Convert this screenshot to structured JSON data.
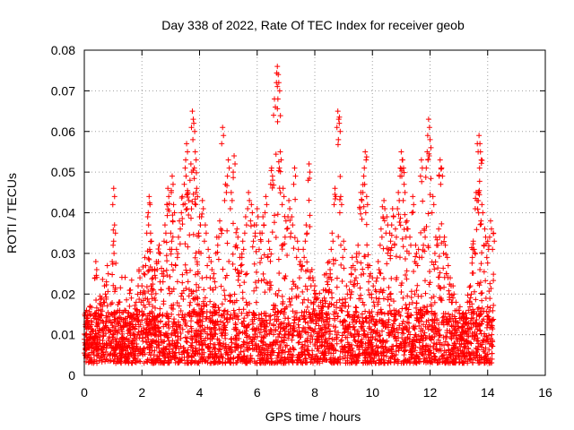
{
  "chart_data": {
    "type": "scatter",
    "title": "Day 338 of 2022, Rate Of TEC Index for receiver geob",
    "xlabel": "GPS time / hours",
    "ylabel": "ROTI / TECUs",
    "xlim": [
      0,
      16
    ],
    "ylim": [
      0,
      0.08
    ],
    "x_ticks": [
      0,
      2,
      4,
      6,
      8,
      10,
      12,
      14,
      16
    ],
    "y_ticks": [
      0,
      0.01,
      0.02,
      0.03,
      0.04,
      0.05,
      0.06,
      0.07,
      0.08
    ],
    "x_tick_labels": [
      "0",
      "2",
      "4",
      "6",
      "8",
      "10",
      "12",
      "14",
      "16"
    ],
    "y_tick_labels": [
      "0",
      "0.01",
      "0.02",
      "0.03",
      "0.04",
      "0.05",
      "0.06",
      "0.07",
      "0.08"
    ],
    "grid": true,
    "marker": "+",
    "series": [
      {
        "name": "ROTI",
        "color": "#ff0000",
        "x": [
          0.05,
          0.1,
          0.15,
          0.2,
          0.3,
          0.4,
          0.5,
          0.6,
          0.7,
          0.8,
          0.9,
          1.0,
          1.02,
          1.05,
          1.1,
          1.2,
          1.3,
          1.4,
          1.5,
          1.6,
          1.7,
          1.8,
          1.9,
          2.0,
          2.1,
          2.2,
          2.25,
          2.3,
          2.35,
          2.4,
          2.5,
          2.6,
          2.7,
          2.8,
          2.9,
          3.0,
          3.05,
          3.1,
          3.2,
          3.3,
          3.4,
          3.5,
          3.55,
          3.6,
          3.7,
          3.75,
          3.8,
          3.85,
          3.9,
          4.0,
          4.1,
          4.2,
          4.3,
          4.4,
          4.5,
          4.6,
          4.7,
          4.8,
          4.9,
          5.0,
          5.1,
          5.2,
          5.3,
          5.4,
          5.5,
          5.6,
          5.7,
          5.8,
          5.9,
          6.0,
          6.1,
          6.2,
          6.3,
          6.4,
          6.5,
          6.6,
          6.7,
          6.75,
          6.8,
          6.9,
          7.0,
          7.1,
          7.2,
          7.3,
          7.4,
          7.5,
          7.6,
          7.7,
          7.8,
          7.9,
          8.0,
          8.1,
          8.2,
          8.3,
          8.4,
          8.5,
          8.6,
          8.7,
          8.8,
          8.85,
          8.9,
          9.0,
          9.1,
          9.2,
          9.3,
          9.4,
          9.5,
          9.6,
          9.7,
          9.75,
          9.8,
          9.9,
          10.0,
          10.1,
          10.2,
          10.3,
          10.4,
          10.5,
          10.6,
          10.7,
          10.8,
          10.9,
          11.0,
          11.05,
          11.1,
          11.2,
          11.3,
          11.4,
          11.5,
          11.6,
          11.7,
          11.8,
          11.9,
          11.95,
          12.0,
          12.1,
          12.2,
          12.3,
          12.35,
          12.4,
          12.5,
          12.6,
          12.7,
          12.8,
          12.9,
          13.0,
          13.1,
          13.2,
          13.3,
          13.4,
          13.5,
          13.6,
          13.7,
          13.75,
          13.8,
          13.9,
          14.0,
          14.1,
          14.2
        ],
        "y": [
          0.012,
          0.014,
          0.009,
          0.017,
          0.011,
          0.028,
          0.013,
          0.019,
          0.022,
          0.027,
          0.015,
          0.032,
          0.046,
          0.037,
          0.011,
          0.018,
          0.009,
          0.016,
          0.013,
          0.021,
          0.012,
          0.018,
          0.026,
          0.022,
          0.029,
          0.039,
          0.044,
          0.035,
          0.026,
          0.021,
          0.028,
          0.032,
          0.025,
          0.037,
          0.046,
          0.035,
          0.049,
          0.042,
          0.031,
          0.038,
          0.044,
          0.051,
          0.057,
          0.045,
          0.052,
          0.065,
          0.062,
          0.055,
          0.046,
          0.039,
          0.043,
          0.037,
          0.031,
          0.028,
          0.025,
          0.034,
          0.038,
          0.061,
          0.047,
          0.053,
          0.045,
          0.054,
          0.036,
          0.029,
          0.033,
          0.039,
          0.045,
          0.042,
          0.037,
          0.041,
          0.035,
          0.039,
          0.044,
          0.033,
          0.051,
          0.068,
          0.076,
          0.072,
          0.055,
          0.046,
          0.038,
          0.043,
          0.039,
          0.051,
          0.033,
          0.028,
          0.031,
          0.037,
          0.052,
          0.026,
          0.022,
          0.019,
          0.018,
          0.021,
          0.025,
          0.028,
          0.035,
          0.046,
          0.065,
          0.062,
          0.044,
          0.033,
          0.022,
          0.021,
          0.029,
          0.026,
          0.032,
          0.045,
          0.049,
          0.055,
          0.044,
          0.027,
          0.024,
          0.021,
          0.028,
          0.036,
          0.043,
          0.039,
          0.035,
          0.041,
          0.036,
          0.045,
          0.055,
          0.053,
          0.047,
          0.038,
          0.034,
          0.044,
          0.032,
          0.031,
          0.053,
          0.036,
          0.055,
          0.063,
          0.058,
          0.044,
          0.034,
          0.036,
          0.053,
          0.051,
          0.034,
          0.029,
          0.024,
          0.022,
          0.018,
          0.016,
          0.014,
          0.015,
          0.018,
          0.022,
          0.033,
          0.045,
          0.059,
          0.055,
          0.042,
          0.036,
          0.033,
          0.038,
          0.035
        ],
        "baseline_band": [
          0.003,
          0.016
        ]
      }
    ]
  }
}
